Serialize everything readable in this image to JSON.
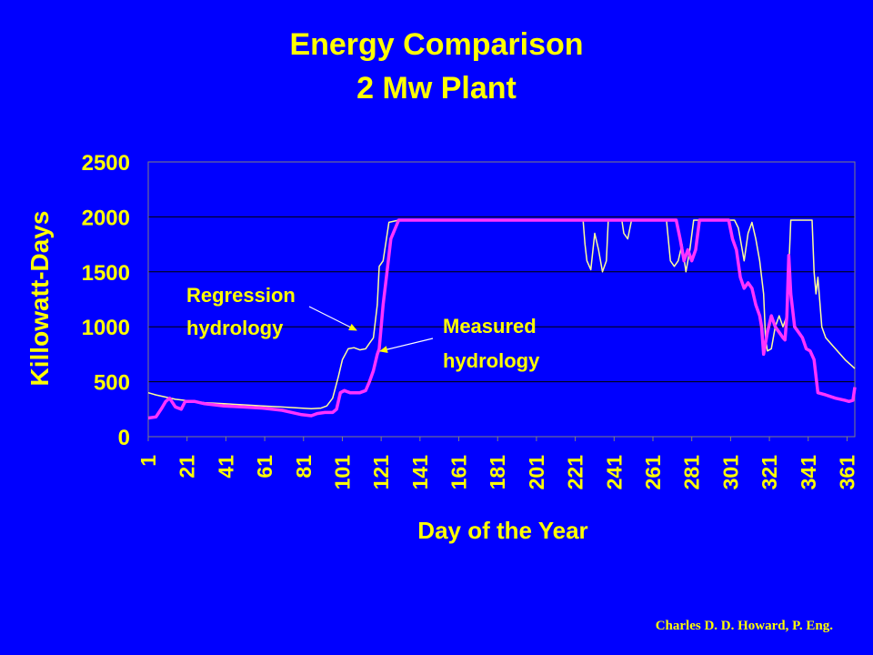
{
  "slide": {
    "title_line1": "Energy Comparison",
    "title_line2": "2 Mw Plant",
    "credit": "Charles D. D. Howard, P. Eng."
  },
  "colors": {
    "background": "#0000FF",
    "text": "#FFFF00",
    "regression_line": "#FFFF99",
    "measured_line": "#FF33FF",
    "plot_border": "#808080"
  },
  "chart_data": {
    "type": "line",
    "xlabel": "Day of the Year",
    "ylabel": "Killowatt-Days",
    "xlim": [
      1,
      365
    ],
    "ylim": [
      0,
      2500
    ],
    "yticks": [
      0,
      500,
      1000,
      1500,
      2000,
      2500
    ],
    "xticks": [
      1,
      21,
      41,
      61,
      81,
      101,
      121,
      141,
      161,
      181,
      201,
      221,
      241,
      261,
      281,
      301,
      321,
      341,
      361
    ],
    "grid": "horizontal",
    "legend": "none",
    "annotations": [
      {
        "line1": "Regression",
        "line2": "hydrology",
        "points_to": "Regression hydrology"
      },
      {
        "line1": "Measured",
        "line2": "hydrology",
        "points_to": "Measured hydrology"
      }
    ],
    "series": [
      {
        "name": "Regression hydrology",
        "x": [
          1,
          5,
          10,
          15,
          20,
          25,
          30,
          40,
          50,
          60,
          70,
          80,
          85,
          90,
          93,
          96,
          99,
          101,
          104,
          107,
          110,
          113,
          115,
          117,
          119,
          120,
          122,
          125,
          130,
          140,
          150,
          160,
          170,
          180,
          190,
          200,
          210,
          220,
          225,
          226,
          227,
          229,
          231,
          233,
          235,
          237,
          238,
          240,
          245,
          246,
          248,
          250,
          255,
          260,
          265,
          268,
          270,
          272,
          274,
          276,
          278,
          280,
          282,
          285,
          290,
          295,
          300,
          303,
          305,
          306,
          308,
          310,
          312,
          314,
          316,
          318,
          319,
          320,
          322,
          324,
          326,
          328,
          330,
          332,
          334,
          336,
          340,
          343,
          344,
          345,
          346,
          348,
          350,
          355,
          360,
          365
        ],
        "y": [
          400,
          380,
          360,
          340,
          330,
          320,
          310,
          300,
          290,
          280,
          270,
          260,
          255,
          260,
          280,
          350,
          550,
          700,
          800,
          810,
          790,
          800,
          850,
          900,
          1200,
          1550,
          1600,
          1950,
          1970,
          1970,
          1970,
          1970,
          1970,
          1970,
          1970,
          1970,
          1970,
          1970,
          1970,
          1750,
          1600,
          1520,
          1850,
          1700,
          1500,
          1600,
          1970,
          1970,
          1970,
          1850,
          1800,
          1970,
          1970,
          1970,
          1970,
          1970,
          1600,
          1550,
          1600,
          1750,
          1500,
          1700,
          1970,
          1970,
          1970,
          1970,
          1970,
          1970,
          1900,
          1800,
          1600,
          1850,
          1950,
          1800,
          1600,
          1300,
          900,
          780,
          800,
          1000,
          1100,
          1000,
          1100,
          1970,
          1970,
          1970,
          1970,
          1970,
          1500,
          1300,
          1450,
          1000,
          900,
          800,
          700,
          620
        ]
      },
      {
        "name": "Measured hydrology",
        "x": [
          1,
          5,
          8,
          10,
          12,
          15,
          18,
          20,
          25,
          30,
          40,
          50,
          60,
          70,
          75,
          80,
          85,
          88,
          92,
          96,
          98,
          100,
          102,
          105,
          110,
          113,
          115,
          117,
          119,
          120,
          122,
          124,
          126,
          130,
          140,
          150,
          160,
          170,
          180,
          190,
          200,
          210,
          220,
          230,
          240,
          250,
          260,
          270,
          273,
          275,
          277,
          279,
          281,
          283,
          285,
          290,
          300,
          302,
          304,
          306,
          308,
          310,
          312,
          314,
          316,
          317,
          318,
          320,
          322,
          324,
          326,
          328,
          329,
          330,
          331,
          332,
          334,
          336,
          338,
          340,
          342,
          344,
          346,
          350,
          355,
          360,
          362,
          364,
          365
        ],
        "y": [
          170,
          180,
          260,
          320,
          350,
          270,
          250,
          320,
          320,
          300,
          280,
          270,
          260,
          240,
          220,
          200,
          190,
          210,
          220,
          220,
          250,
          400,
          420,
          400,
          400,
          420,
          500,
          600,
          750,
          800,
          1200,
          1500,
          1800,
          1970,
          1970,
          1970,
          1970,
          1970,
          1970,
          1970,
          1970,
          1970,
          1970,
          1970,
          1970,
          1970,
          1970,
          1970,
          1970,
          1800,
          1600,
          1700,
          1600,
          1700,
          1970,
          1970,
          1970,
          1800,
          1700,
          1450,
          1350,
          1400,
          1350,
          1200,
          1100,
          1000,
          750,
          950,
          1100,
          1000,
          950,
          900,
          880,
          1100,
          1650,
          1300,
          1000,
          950,
          900,
          800,
          780,
          700,
          400,
          380,
          350,
          330,
          320,
          330,
          450
        ]
      }
    ]
  }
}
